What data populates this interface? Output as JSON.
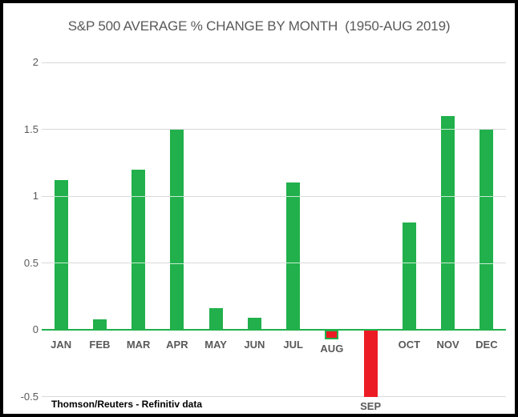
{
  "chart_data": {
    "type": "bar",
    "title": "S&P 500 AVERAGE % CHANGE BY MONTH  (1950-AUG 2019)",
    "source_note": "Thomson/Reuters - Refinitiv data",
    "categories": [
      "JAN",
      "FEB",
      "MAR",
      "APR",
      "MAY",
      "JUN",
      "JUL",
      "AUG",
      "SEP",
      "OCT",
      "NOV",
      "DEC"
    ],
    "values": [
      1.12,
      0.08,
      1.2,
      1.5,
      0.16,
      0.09,
      1.1,
      -0.07,
      -0.5,
      0.8,
      1.6,
      1.5
    ],
    "xlabel": "",
    "ylabel": "",
    "y_ticks": [
      2,
      1.5,
      1,
      0.5,
      0,
      -0.5
    ],
    "ylim": [
      -0.5,
      2
    ],
    "grid": "horizontal",
    "legend": "none",
    "colors": {
      "positive_bar": "#21b04b",
      "negative_bar": "#ec1c24",
      "zero_axis_line": "#21b04b",
      "gridline": "#d9d9d9",
      "axis_text": "#595959",
      "title_text": "#595959",
      "source_text": "#000000",
      "frame_border": "#000000"
    },
    "outlined_category": "AUG",
    "outline_color": "#21b04b"
  }
}
